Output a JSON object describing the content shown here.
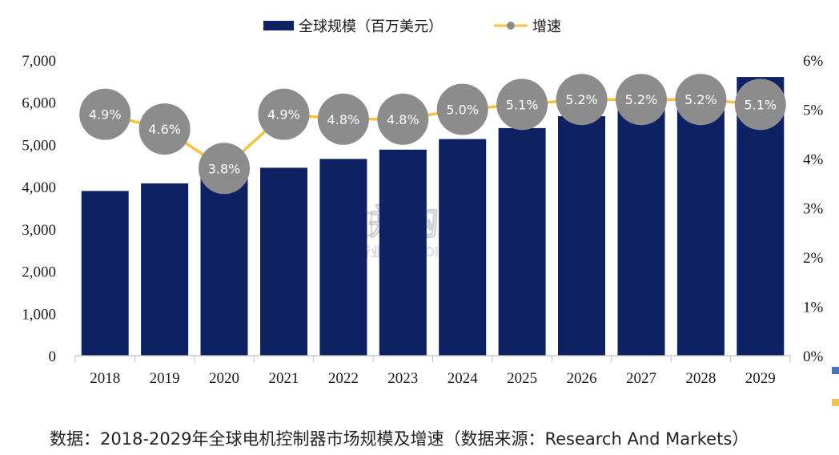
{
  "chart_data": {
    "type": "bar+line",
    "categories": [
      "2018",
      "2019",
      "2020",
      "2021",
      "2022",
      "2023",
      "2024",
      "2025",
      "2026",
      "2027",
      "2028",
      "2029"
    ],
    "series": [
      {
        "name": "全球规模（百万美元）",
        "type": "bar",
        "axis": "left",
        "color": "#0d2163",
        "values": [
          3900,
          4080,
          4240,
          4450,
          4660,
          4880,
          5130,
          5390,
          5670,
          5960,
          6270,
          6600
        ]
      },
      {
        "name": "增速",
        "type": "line",
        "axis": "right",
        "color": "#f5c242",
        "marker_color": "#8c8c8c",
        "values": [
          4.9,
          4.6,
          3.8,
          4.9,
          4.8,
          4.8,
          5.0,
          5.1,
          5.2,
          5.2,
          5.2,
          5.1
        ],
        "labels": [
          "4.9%",
          "4.6%",
          "3.8%",
          "4.9%",
          "4.8%",
          "4.8%",
          "5.0%",
          "5.1%",
          "5.2%",
          "5.2%",
          "5.2%",
          "5.1%"
        ]
      }
    ],
    "y_left": {
      "ticks": [
        0,
        1000,
        2000,
        3000,
        4000,
        5000,
        6000,
        7000
      ],
      "tick_labels": [
        "0",
        "1,000",
        "2,000",
        "3,000",
        "4,000",
        "5,000",
        "6,000",
        "7,000"
      ],
      "ylim": [
        0,
        7000
      ]
    },
    "y_right": {
      "ticks": [
        0,
        1,
        2,
        3,
        4,
        5,
        6
      ],
      "tick_labels": [
        "0%",
        "1%",
        "2%",
        "3%",
        "4%",
        "5%",
        "6%"
      ],
      "ylim": [
        0,
        6
      ]
    },
    "legend_position": "top-center",
    "grid": false
  },
  "watermark": {
    "logo_text": "并购家",
    "sub_text": "行业报告 IPOIPO.CN"
  },
  "caption": "数据：2018-2029年全球电机控制器市场规模及增速（数据来源：Research And Markets）",
  "side_markers": [
    "#4472c4",
    "#f5c242"
  ]
}
